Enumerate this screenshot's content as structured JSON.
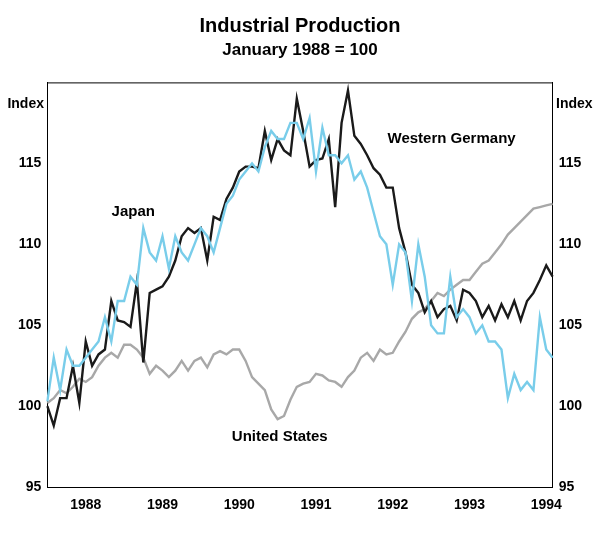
{
  "chart_data": {
    "type": "line",
    "title": "Industrial Production",
    "subtitle": "January 1988 = 100",
    "y_label": "Index",
    "categories": [
      null,
      null,
      null,
      null,
      null,
      null,
      "1988",
      null,
      null,
      null,
      null,
      null,
      null,
      null,
      null,
      null,
      null,
      null,
      "1989",
      null,
      null,
      null,
      null,
      null,
      null,
      null,
      null,
      null,
      null,
      null,
      "1990",
      null,
      null,
      null,
      null,
      null,
      null,
      null,
      null,
      null,
      null,
      null,
      "1991",
      null,
      null,
      null,
      null,
      null,
      null,
      null,
      null,
      null,
      null,
      null,
      "1992",
      null,
      null,
      null,
      null,
      null,
      null,
      null,
      null,
      null,
      null,
      null,
      "1993",
      null,
      null,
      null,
      null,
      null,
      null,
      null,
      null,
      null,
      null,
      null,
      "1994",
      null
    ],
    "series": [
      {
        "name": "Japan",
        "color": "#79cdea",
        "values": [
          100.3,
          103,
          101,
          103.5,
          102.5,
          102.5,
          103,
          103.5,
          104,
          105.5,
          104,
          106.5,
          106.5,
          108,
          107.5,
          111,
          109.5,
          109,
          110.5,
          108.5,
          110.5,
          109.5,
          109,
          110,
          111,
          110.5,
          109.5,
          111,
          112.5,
          113,
          114,
          114.5,
          115,
          114.5,
          116,
          117,
          116.5,
          116.5,
          117.5,
          117.5,
          116.5,
          117.8,
          114.5,
          117.2,
          115.5,
          115.5,
          115,
          115.5,
          114,
          114.5,
          113.5,
          112,
          110.5,
          110,
          107.5,
          110,
          109.5,
          106.5,
          110,
          108,
          105,
          104.5,
          104.5,
          108,
          105.5,
          106,
          105.5,
          104.5,
          105,
          104,
          104,
          103.5,
          100.5,
          102,
          101,
          101.5,
          101,
          105.5,
          103.5,
          103
        ]
      },
      {
        "name": "Western Germany",
        "color": "#1a1a1a",
        "values": [
          100,
          98.8,
          100.5,
          100.5,
          102.5,
          100.2,
          104,
          102.5,
          103.2,
          103.5,
          106.5,
          105.3,
          105.2,
          104.9,
          107.7,
          102.7,
          107,
          107.2,
          107.4,
          108,
          109,
          110.5,
          111,
          110.7,
          111,
          109,
          111.7,
          111.5,
          112.8,
          113.5,
          114.5,
          114.8,
          114.8,
          114.7,
          117,
          115.2,
          116.5,
          115.8,
          115.5,
          119,
          117,
          114.8,
          115.2,
          115.3,
          116.5,
          112.3,
          117.5,
          119.5,
          116.7,
          116.2,
          115.5,
          114.7,
          114.3,
          113.5,
          113.5,
          111,
          109.5,
          107.5,
          107,
          105.8,
          106.5,
          105.5,
          106,
          106.2,
          105.3,
          107.2,
          107,
          106.5,
          105.5,
          106.2,
          105.3,
          106.3,
          105.5,
          106.5,
          105.3,
          106.5,
          107,
          107.8,
          108.7,
          108
        ]
      },
      {
        "name": "United States",
        "color": "#a8a8a8",
        "values": [
          100.2,
          100.5,
          101,
          100.8,
          101.2,
          101.7,
          101.5,
          101.8,
          102.5,
          103,
          103.3,
          103,
          103.8,
          103.8,
          103.5,
          103,
          102,
          102.5,
          102.2,
          101.8,
          102.2,
          102.8,
          102.2,
          102.8,
          103,
          102.4,
          103.2,
          103.4,
          103.2,
          103.5,
          103.5,
          102.8,
          101.8,
          101.4,
          101,
          99.8,
          99.2,
          99.4,
          100.4,
          101.2,
          101.4,
          101.5,
          102,
          101.9,
          101.6,
          101.5,
          101.2,
          101.8,
          102.2,
          103,
          103.3,
          102.8,
          103.5,
          103.2,
          103.3,
          104,
          104.6,
          105.4,
          105.8,
          106,
          106.5,
          107,
          106.8,
          107.2,
          107.5,
          107.8,
          107.8,
          108.3,
          108.8,
          109,
          109.5,
          110,
          110.6,
          111,
          111.4,
          111.8,
          112.2,
          112.3,
          112.4,
          112.5
        ]
      }
    ],
    "ylim": [
      95,
      120
    ],
    "yticks": [
      95,
      100,
      105,
      110,
      115
    ],
    "grid": false
  }
}
